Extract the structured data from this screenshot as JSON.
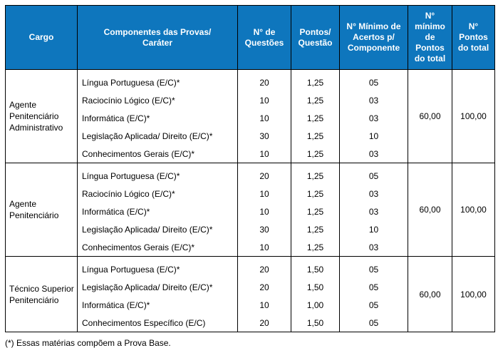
{
  "colors": {
    "header_bg": "#0e76bd",
    "header_text": "#ffffff",
    "border": "#000000",
    "body_text": "#000000"
  },
  "table": {
    "headers": [
      "Cargo",
      "Componentes das Provas/\nCaráter",
      "N° de\nQuestões",
      "Pontos/\nQuestão",
      "N° Mínimo de\nAcertos p/\nComponente",
      "N°\nmínimo\nde\nPontos\ndo total",
      "N°\nPontos\ndo total"
    ],
    "groups": [
      {
        "cargo": "Agente Penitenciário Administrativo",
        "rows": [
          {
            "component": "Língua Portuguesa (E/C)*",
            "questoes": "20",
            "pontos": "1,25",
            "acertos": "05"
          },
          {
            "component": "Raciocínio Lógico (E/C)*",
            "questoes": "10",
            "pontos": "1,25",
            "acertos": "03"
          },
          {
            "component": "Informática (E/C)*",
            "questoes": "10",
            "pontos": "1,25",
            "acertos": "03"
          },
          {
            "component": "Legislação Aplicada/ Direito (E/C)*",
            "questoes": "30",
            "pontos": "1,25",
            "acertos": "10"
          },
          {
            "component": "Conhecimentos Gerais (E/C)*",
            "questoes": "10",
            "pontos": "1,25",
            "acertos": "03"
          }
        ],
        "min_pontos_total": "60,00",
        "pontos_total": "100,00"
      },
      {
        "cargo": "Agente Penitenciário",
        "rows": [
          {
            "component": "Língua Portuguesa (E/C)*",
            "questoes": "20",
            "pontos": "1,25",
            "acertos": "05"
          },
          {
            "component": "Raciocínio Lógico (E/C)*",
            "questoes": "10",
            "pontos": "1,25",
            "acertos": "03"
          },
          {
            "component": "Informática (E/C)*",
            "questoes": "10",
            "pontos": "1,25",
            "acertos": "03"
          },
          {
            "component": "Legislação Aplicada/ Direito (E/C)*",
            "questoes": "30",
            "pontos": "1,25",
            "acertos": "10"
          },
          {
            "component": "Conhecimentos Gerais (E/C)*",
            "questoes": "10",
            "pontos": "1,25",
            "acertos": "03"
          }
        ],
        "min_pontos_total": "60,00",
        "pontos_total": "100,00"
      },
      {
        "cargo": "Técnico Superior Penitenciário",
        "rows": [
          {
            "component": "Língua Portuguesa (E/C)*",
            "questoes": "20",
            "pontos": "1,50",
            "acertos": "05"
          },
          {
            "component": "Legislação Aplicada/ Direito (E/C)*",
            "questoes": "20",
            "pontos": "1,50",
            "acertos": "05"
          },
          {
            "component": "Informática (E/C)*",
            "questoes": "10",
            "pontos": "1,00",
            "acertos": "05"
          },
          {
            "component": "Conhecimentos Específico (E/C)",
            "questoes": "20",
            "pontos": "1,50",
            "acertos": "05"
          }
        ],
        "min_pontos_total": "60,00",
        "pontos_total": "100,00"
      }
    ]
  },
  "footnote": "(*) Essas matérias compõem a Prova Base."
}
